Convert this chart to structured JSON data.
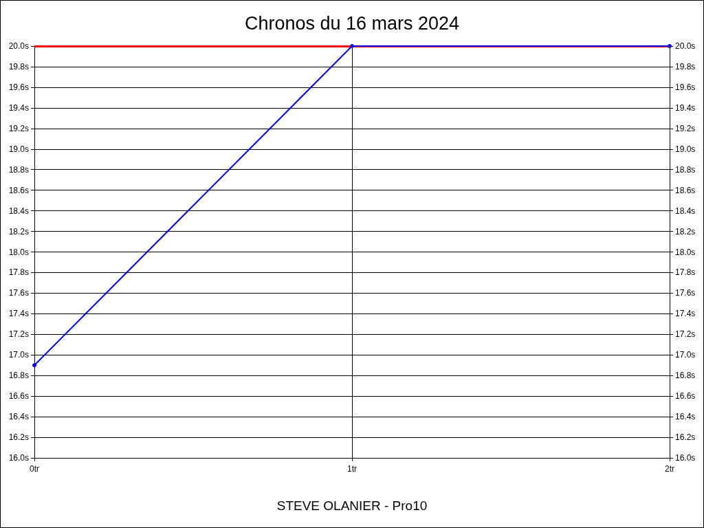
{
  "chart_data": {
    "type": "line",
    "title": "Chronos du 16 mars 2024",
    "annotations": [
      "STEVE OLANIER - Pro10"
    ],
    "x": [
      0,
      1,
      2
    ],
    "series": [
      {
        "color": "#0000ff",
        "values": [
          16.9,
          20.0,
          20.0
        ]
      }
    ],
    "xlim": [
      0,
      2
    ],
    "xticks": [
      {
        "value": 0,
        "label": "0tr"
      },
      {
        "value": 1,
        "label": "1tr"
      },
      {
        "value": 2,
        "label": "2tr"
      }
    ],
    "ylim": [
      16,
      20
    ],
    "yticks": [
      {
        "value": 16,
        "label": "16.0s"
      },
      {
        "value": 16.2,
        "label": "16.2s"
      },
      {
        "value": 16.4,
        "label": "16.4s"
      },
      {
        "value": 16.6,
        "label": "16.6s"
      },
      {
        "value": 16.8,
        "label": "16.8s"
      },
      {
        "value": 17,
        "label": "17.0s"
      },
      {
        "value": 17.2,
        "label": "17.2s"
      },
      {
        "value": 17.4,
        "label": "17.4s"
      },
      {
        "value": 17.6,
        "label": "17.6s"
      },
      {
        "value": 17.8,
        "label": "17.8s"
      },
      {
        "value": 18,
        "label": "18.0s"
      },
      {
        "value": 18.2,
        "label": "18.2s"
      },
      {
        "value": 18.4,
        "label": "18.4s"
      },
      {
        "value": 18.6,
        "label": "18.6s"
      },
      {
        "value": 18.8,
        "label": "18.8s"
      },
      {
        "value": 19,
        "label": "19.0s"
      },
      {
        "value": 19.2,
        "label": "19.2s"
      },
      {
        "value": 19.4,
        "label": "19.4s"
      },
      {
        "value": 19.6,
        "label": "19.6s"
      },
      {
        "value": 19.8,
        "label": "19.8s"
      },
      {
        "value": 20,
        "label": "20.0s"
      }
    ],
    "y2lim": [
      16,
      20
    ],
    "y2ticks": [
      {
        "value": 16,
        "label": "16.0s"
      },
      {
        "value": 16.2,
        "label": "16.2s"
      },
      {
        "value": 16.4,
        "label": "16.4s"
      },
      {
        "value": 16.6,
        "label": "16.6s"
      },
      {
        "value": 16.8,
        "label": "16.8s"
      },
      {
        "value": 17,
        "label": "17.0s"
      },
      {
        "value": 17.2,
        "label": "17.2s"
      },
      {
        "value": 17.4,
        "label": "17.4s"
      },
      {
        "value": 17.6,
        "label": "17.6s"
      },
      {
        "value": 17.8,
        "label": "17.8s"
      },
      {
        "value": 18,
        "label": "18.0s"
      },
      {
        "value": 18.2,
        "label": "18.2s"
      },
      {
        "value": 18.4,
        "label": "18.4s"
      },
      {
        "value": 18.6,
        "label": "18.6s"
      },
      {
        "value": 18.8,
        "label": "18.8s"
      },
      {
        "value": 19,
        "label": "19.0s"
      },
      {
        "value": 19.2,
        "label": "19.2s"
      },
      {
        "value": 19.4,
        "label": "19.4s"
      },
      {
        "value": 19.6,
        "label": "19.6s"
      },
      {
        "value": 19.8,
        "label": "19.8s"
      },
      {
        "value": 20,
        "label": "20.0s"
      }
    ],
    "ref_lines": [
      {
        "axis": "y",
        "value": 20,
        "label": null,
        "color": "#ff0000"
      }
    ],
    "grid": true,
    "marker": "circle",
    "line_style": "solid"
  }
}
